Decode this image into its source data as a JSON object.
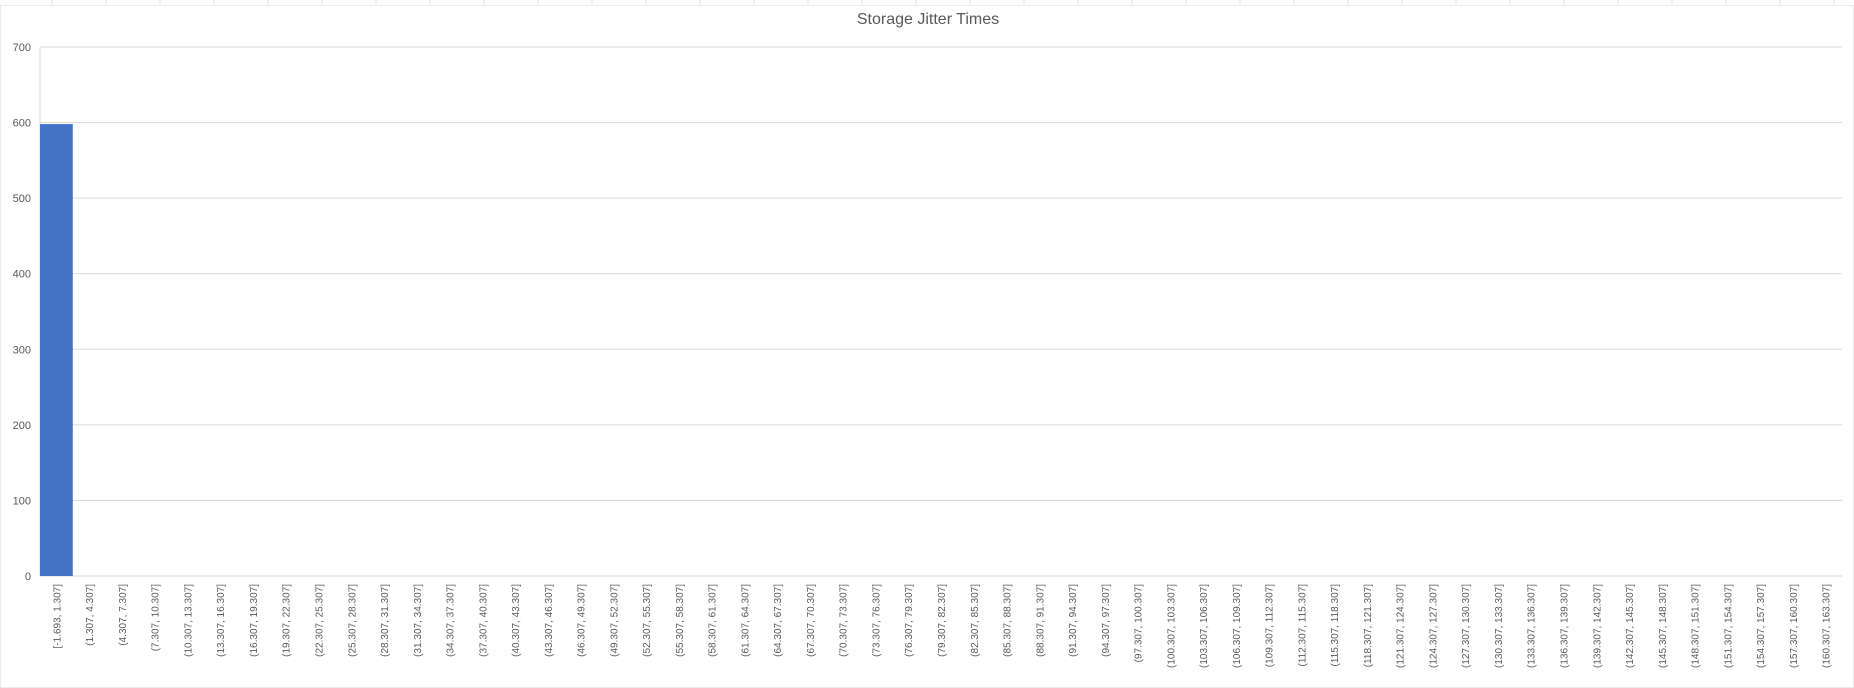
{
  "chart_data": {
    "type": "bar",
    "title": "Storage Jitter Times",
    "xlabel": "",
    "ylabel": "",
    "ylim": [
      0,
      700
    ],
    "yticks": [
      0,
      100,
      200,
      300,
      400,
      500,
      600,
      700
    ],
    "grid": true,
    "legend": "none",
    "bar_color": "#4472C4",
    "categories": [
      "[-1.693, 1.307]",
      "(1.307, 4.307]",
      "(4.307, 7.307]",
      "(7.307, 10.307]",
      "(10.307, 13.307]",
      "(13.307, 16.307]",
      "(16.307, 19.307]",
      "(19.307, 22.307]",
      "(22.307, 25.307]",
      "(25.307, 28.307]",
      "(28.307, 31.307]",
      "(31.307, 34.307]",
      "(34.307, 37.307]",
      "(37.307, 40.307]",
      "(40.307, 43.307]",
      "(43.307, 46.307]",
      "(46.307, 49.307]",
      "(49.307, 52.307]",
      "(52.307, 55.307]",
      "(55.307, 58.307]",
      "(58.307, 61.307]",
      "(61.307, 64.307]",
      "(64.307, 67.307]",
      "(67.307, 70.307]",
      "(70.307, 73.307]",
      "(73.307, 76.307]",
      "(76.307, 79.307]",
      "(79.307, 82.307]",
      "(82.307, 85.307]",
      "(85.307, 88.307]",
      "(88.307, 91.307]",
      "(91.307, 94.307]",
      "(94.307, 97.307]",
      "(97.307, 100.307]",
      "(100.307, 103.307]",
      "(103.307, 106.307]",
      "(106.307, 109.307]",
      "(109.307, 112.307]",
      "(112.307, 115.307]",
      "(115.307, 118.307]",
      "(118.307, 121.307]",
      "(121.307, 124.307]",
      "(124.307, 127.307]",
      "(127.307, 130.307]",
      "(130.307, 133.307]",
      "(133.307, 136.307]",
      "(136.307, 139.307]",
      "(139.307, 142.307]",
      "(142.307, 145.307]",
      "(145.307, 148.307]",
      "(148.307, 151.307]",
      "(151.307, 154.307]",
      "(154.307, 157.307]",
      "(157.307, 160.307]",
      "(160.307, 163.307]"
    ],
    "values": [
      598,
      0,
      0,
      0,
      0,
      0,
      0,
      0,
      0,
      0,
      0,
      0,
      0,
      0,
      0,
      0,
      0,
      0,
      0,
      0,
      0,
      0,
      0,
      0,
      0,
      0,
      0,
      0,
      0,
      0,
      0,
      0,
      0,
      0,
      0,
      0,
      0,
      0,
      0,
      0,
      0,
      0,
      0,
      0,
      0,
      0,
      0,
      0,
      0,
      0,
      0,
      0,
      0,
      0,
      0
    ]
  }
}
